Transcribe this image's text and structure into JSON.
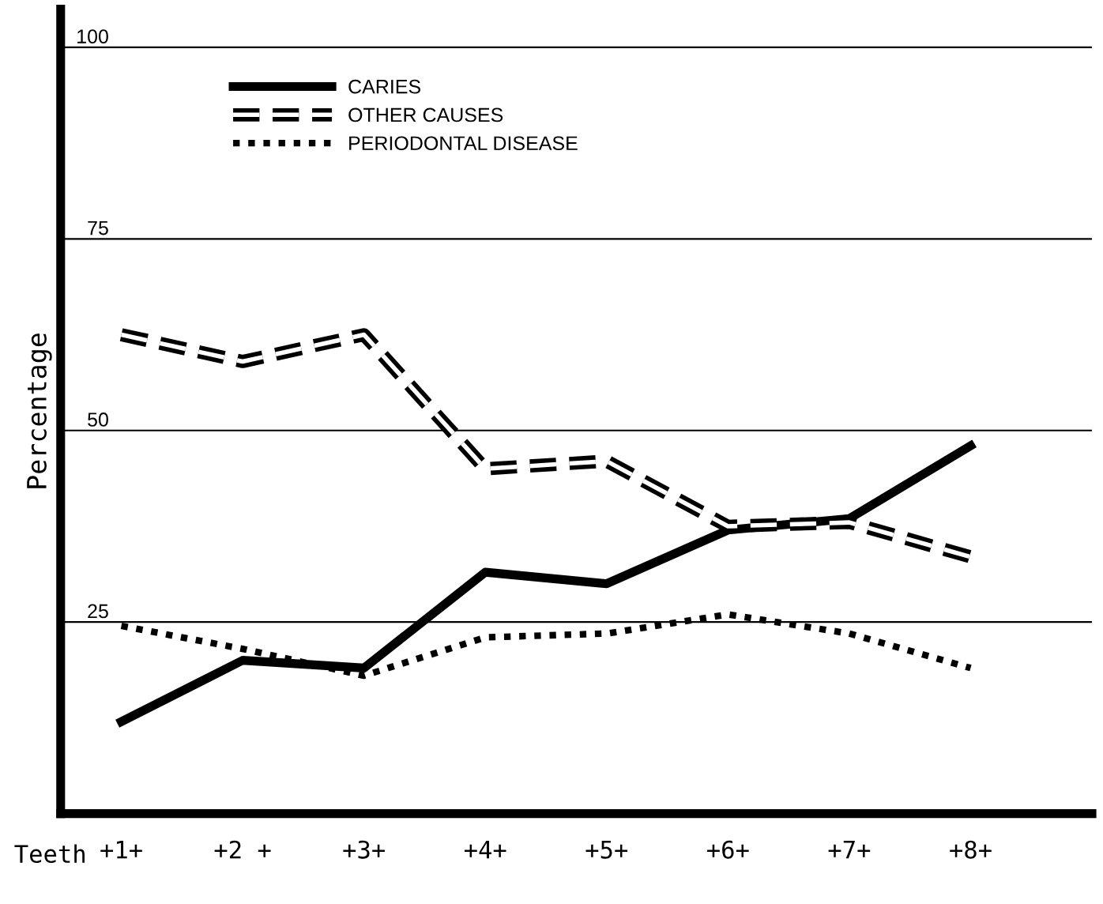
{
  "chart_data": {
    "type": "line",
    "xlabel": "Teeth",
    "ylabel": "Percentage",
    "categories": [
      "+1+",
      "+2 +",
      "+3+",
      "+4+",
      "+5+",
      "+6+",
      "+7+",
      "+8+"
    ],
    "series": [
      {
        "name": "CARIES",
        "color": "#000000",
        "line_style": "solid",
        "values": [
          12,
          20,
          19,
          31.5,
          30,
          37,
          38.5,
          48
        ]
      },
      {
        "name": "OTHER CAUSES",
        "color": "#000000",
        "line_style": "dashed",
        "values": [
          62.5,
          59,
          62.5,
          45,
          46,
          37.5,
          38,
          33.5
        ]
      },
      {
        "name": "PERIODONTAL DISEASE",
        "color": "#000000",
        "line_style": "dotted",
        "values": [
          24.5,
          21.5,
          18,
          23,
          23.5,
          26,
          23.5,
          19
        ]
      }
    ],
    "ylim": [
      0,
      105
    ],
    "yticks": [
      25,
      50,
      75,
      100
    ],
    "grid": "y",
    "legend": "top left"
  }
}
